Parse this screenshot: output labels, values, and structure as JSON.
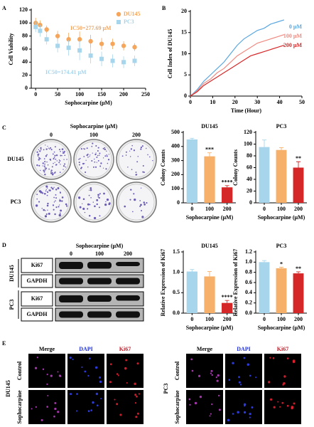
{
  "chart_data": [
    {
      "type": "scatter",
      "xlabel": "Sophocarpine (μM)",
      "ylabel": "Cell Viability",
      "xlim": [
        -10,
        250
      ],
      "xticks": [
        0,
        50,
        100,
        150,
        200,
        250
      ],
      "ylim": [
        0,
        120
      ],
      "yticks": [
        0,
        20,
        40,
        60,
        80,
        100,
        120
      ],
      "legend": "upper right",
      "series": [
        {
          "name": "DU145",
          "color": "#f5a65b",
          "marker": "circle",
          "x": [
            0,
            10,
            25,
            50,
            75,
            100,
            125,
            150,
            175,
            200,
            225
          ],
          "values": [
            100,
            97,
            90,
            80,
            75,
            75,
            72,
            68,
            68,
            65,
            63
          ],
          "errors": [
            8,
            7,
            6,
            8,
            10,
            12,
            10,
            9,
            8,
            7,
            6
          ]
        },
        {
          "name": "PC3",
          "color": "#a6d5ec",
          "marker": "square",
          "x": [
            0,
            10,
            25,
            50,
            75,
            100,
            125,
            150,
            175,
            200,
            225
          ],
          "values": [
            94,
            88,
            75,
            65,
            62,
            58,
            50,
            45,
            42,
            40,
            42
          ],
          "errors": [
            8,
            9,
            8,
            10,
            12,
            15,
            12,
            11,
            10,
            9,
            8
          ]
        }
      ],
      "annotations": [
        {
          "text": "IC50=277.69 μM",
          "color": "#f5a65b"
        },
        {
          "text": "IC50=174.41 μM",
          "color": "#a6d5ec"
        }
      ]
    },
    {
      "type": "line",
      "xlabel": "Time (Hour)",
      "ylabel": "Cell Index of DU145",
      "xlim": [
        0,
        50
      ],
      "xticks": [
        0,
        10,
        20,
        30,
        40,
        50
      ],
      "ylim": [
        0,
        20
      ],
      "yticks": [
        0,
        5,
        10,
        15,
        20
      ],
      "legend": "right",
      "x": [
        0,
        3,
        6,
        9,
        12,
        15,
        18,
        21,
        24,
        27,
        30,
        33,
        36,
        39,
        42
      ],
      "series": [
        {
          "name": "0 μM",
          "color": "#5aa7e0",
          "values": [
            0,
            1.5,
            3.5,
            5,
            6.5,
            8,
            10,
            12,
            13.5,
            14.5,
            15.5,
            16,
            17,
            17.5,
            18
          ]
        },
        {
          "name": "100 μM",
          "color": "#f08a80",
          "values": [
            0,
            1.2,
            3,
            4,
            5.5,
            6.5,
            8,
            9.5,
            10.5,
            11.5,
            12.5,
            13,
            13.5,
            14,
            14.5
          ]
        },
        {
          "name": "200 μM",
          "color": "#d62728",
          "values": [
            0,
            1,
            2.5,
            3.5,
            4.5,
            5.5,
            6.5,
            7.5,
            8.5,
            9.5,
            10,
            10.5,
            11,
            11.5,
            12
          ]
        }
      ]
    },
    {
      "type": "bar",
      "title": "DU145",
      "xlabel": "Sophocarpine (μM)",
      "ylabel": "Colony Counts",
      "categories": [
        "0",
        "100",
        "200"
      ],
      "values": [
        450,
        330,
        110
      ],
      "errors": [
        8,
        25,
        12
      ],
      "significance": [
        null,
        "***",
        "****"
      ],
      "colors": [
        "#a6d5ec",
        "#f7b06a",
        "#d62728"
      ],
      "ylim": [
        0,
        500
      ],
      "yticks": [
        0,
        100,
        200,
        300,
        400,
        500
      ]
    },
    {
      "type": "bar",
      "title": "PC3",
      "xlabel": "Sophocarpine (μM)",
      "ylabel": "Colony Counts",
      "categories": [
        "0",
        "100",
        "200"
      ],
      "values": [
        95,
        90,
        60
      ],
      "errors": [
        12,
        4,
        10
      ],
      "significance": [
        null,
        null,
        "**"
      ],
      "colors": [
        "#a6d5ec",
        "#f7b06a",
        "#d62728"
      ],
      "ylim": [
        0,
        120
      ],
      "yticks": [
        0,
        20,
        40,
        60,
        80,
        100,
        120
      ]
    },
    {
      "type": "bar",
      "title": "DU145",
      "xlabel": "Sophocarpine (μM)",
      "ylabel": "Relative Expression of Ki67",
      "categories": [
        "0",
        "100",
        "200"
      ],
      "values": [
        1.02,
        0.9,
        0.25
      ],
      "errors": [
        0.05,
        0.12,
        0.06
      ],
      "significance": [
        null,
        null,
        "****"
      ],
      "colors": [
        "#a6d5ec",
        "#f7b06a",
        "#d62728"
      ],
      "ylim": [
        0,
        1.5
      ],
      "yticks": [
        {
          "value": 0,
          "label": "0.0"
        },
        0.5,
        {
          "value": 1,
          "label": "1.0"
        },
        1.5
      ]
    },
    {
      "type": "bar",
      "title": "PC3",
      "xlabel": "Sophocarpine (μM)",
      "ylabel": "Relative Expression of Ki67",
      "categories": [
        "0",
        "100",
        "200"
      ],
      "values": [
        1.0,
        0.88,
        0.78
      ],
      "errors": [
        0.03,
        0.02,
        0.03
      ],
      "significance": [
        null,
        "*",
        "**"
      ],
      "colors": [
        "#a6d5ec",
        "#f7b06a",
        "#d62728"
      ],
      "ylim": [
        0,
        1.2
      ],
      "yticks": [
        {
          "value": 0,
          "label": "0.0"
        },
        0.2,
        0.4,
        0.6,
        0.8,
        {
          "value": 1,
          "label": "1.0"
        },
        1.2
      ]
    }
  ],
  "panels": [
    "A",
    "B",
    "C",
    "D",
    "E"
  ],
  "colony": {
    "title": "Sophocarpine (μM)",
    "columns": [
      "0",
      "100",
      "200"
    ],
    "rows": [
      "DU145",
      "PC3"
    ]
  },
  "western": {
    "title": "Sophocarpine (μM)",
    "columns": [
      "0",
      "100",
      "200"
    ],
    "cell_lines": [
      "DU145",
      "PC3"
    ],
    "proteins": [
      "Ki67",
      "GAPDH",
      "Ki67",
      "GAPDH"
    ]
  },
  "immunofluorescence": {
    "channels": [
      "Merge",
      "DAPI",
      "Ki67"
    ],
    "cell_lines": [
      "DU145",
      "PC3"
    ],
    "treatments": [
      "Control",
      "Sophocarpine"
    ]
  }
}
